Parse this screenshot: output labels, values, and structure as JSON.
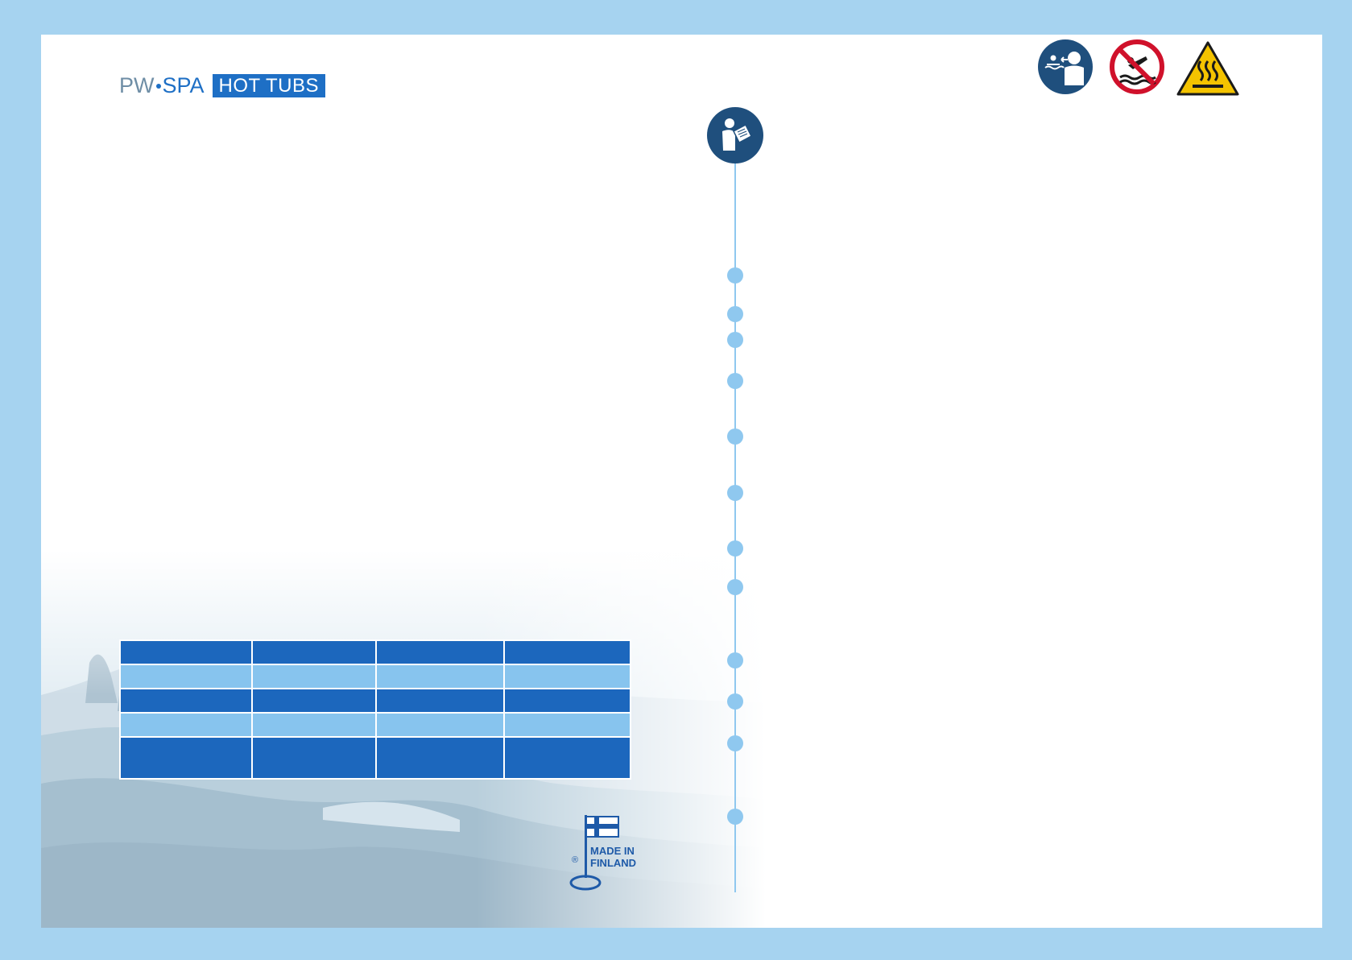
{
  "brand": {
    "logo_pw": "PW",
    "logo_spa": "SPA",
    "logo_badge": "HOT TUBS"
  },
  "icons": {
    "manual": "read-manual-icon",
    "lifeguard": "supervise-children-icon",
    "no_diving": "no-diving-icon",
    "hot_surface": "hot-surface-warning-icon"
  },
  "made_in_finland": {
    "line1": "MADE IN",
    "line2": "FINLAND",
    "registered": "®"
  },
  "table": {
    "rows": [
      {
        "style": "dark",
        "cells": [
          "",
          "",
          "",
          ""
        ]
      },
      {
        "style": "light",
        "cells": [
          "",
          "",
          "",
          ""
        ]
      },
      {
        "style": "dark",
        "cells": [
          "",
          "",
          "",
          ""
        ]
      },
      {
        "style": "light",
        "cells": [
          "",
          "",
          "",
          ""
        ]
      },
      {
        "style": "dark",
        "cells": [
          "",
          "",
          "",
          ""
        ]
      }
    ]
  },
  "timeline": {
    "dot_count": 14
  },
  "colors": {
    "frame": "#a6d3f0",
    "brand_blue": "#1e6fc5",
    "table_dark": "#1c67bd",
    "table_light": "#87c4ee",
    "timeline": "#8fc8ef",
    "icon_navy": "#1f4f7d",
    "prohibition_red": "#d0112b",
    "warning_yellow": "#f4c300"
  }
}
